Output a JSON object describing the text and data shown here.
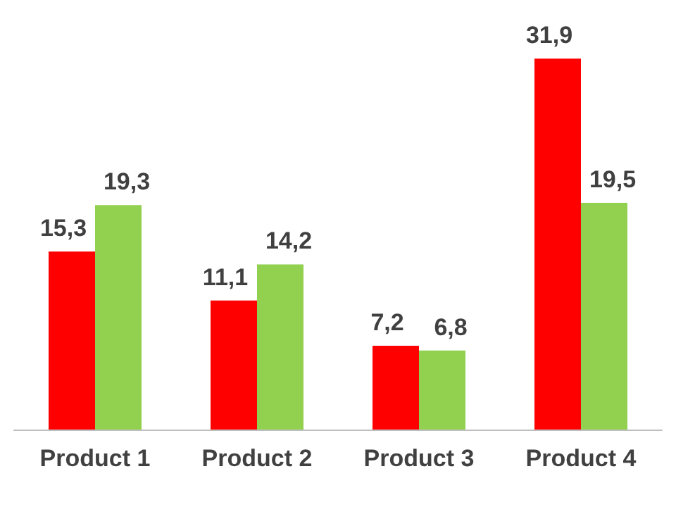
{
  "chart_data": {
    "type": "bar",
    "categories": [
      "Product 1",
      "Product 2",
      "Product 3",
      "Product 4"
    ],
    "series": [
      {
        "color": "#ff0000",
        "values": [
          15.3,
          11.1,
          7.2,
          31.9
        ],
        "value_labels": [
          "15,3",
          "11,1",
          "7,2",
          "31,9"
        ]
      },
      {
        "color": "#92d050",
        "values": [
          19.3,
          14.2,
          6.8,
          19.5
        ],
        "value_labels": [
          "19,3",
          "14,2",
          "6,8",
          "19,5"
        ]
      }
    ]
  }
}
